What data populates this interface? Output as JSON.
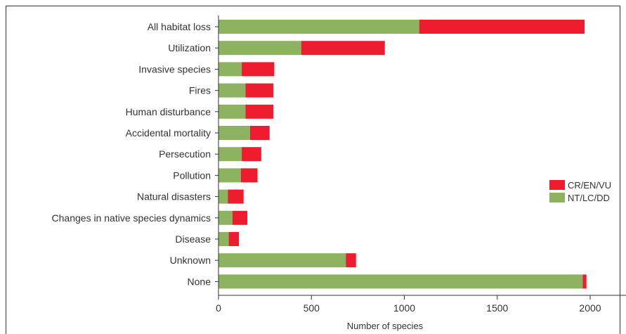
{
  "chart_data": {
    "type": "bar",
    "orientation": "horizontal",
    "stacked": true,
    "title": "",
    "xlabel": "Number of species",
    "ylabel": "",
    "xlim": [
      0,
      2200
    ],
    "x_ticks": [
      0,
      500,
      1000,
      1500,
      2000
    ],
    "grid": false,
    "legend_position": "right",
    "categories": [
      "All habitat loss",
      "Utilization",
      "Invasive species",
      "Fires",
      "Human disturbance",
      "Accidental mortality",
      "Persecution",
      "Pollution",
      "Natural disasters",
      "Changes in native species dynamics",
      "Disease",
      "Unknown",
      "None"
    ],
    "series": [
      {
        "name": "NT/LC/DD",
        "color": "#8db360",
        "values": [
          1080,
          445,
          125,
          145,
          145,
          170,
          125,
          120,
          50,
          75,
          55,
          685,
          1960
        ]
      },
      {
        "name": "CR/EN/VU",
        "color": "#ed1c2e",
        "values": [
          890,
          450,
          175,
          150,
          150,
          105,
          105,
          90,
          85,
          80,
          55,
          55,
          20
        ]
      }
    ],
    "legend": [
      {
        "name": "CR/EN/VU",
        "color": "#ed1c2e"
      },
      {
        "name": "NT/LC/DD",
        "color": "#8db360"
      }
    ]
  }
}
